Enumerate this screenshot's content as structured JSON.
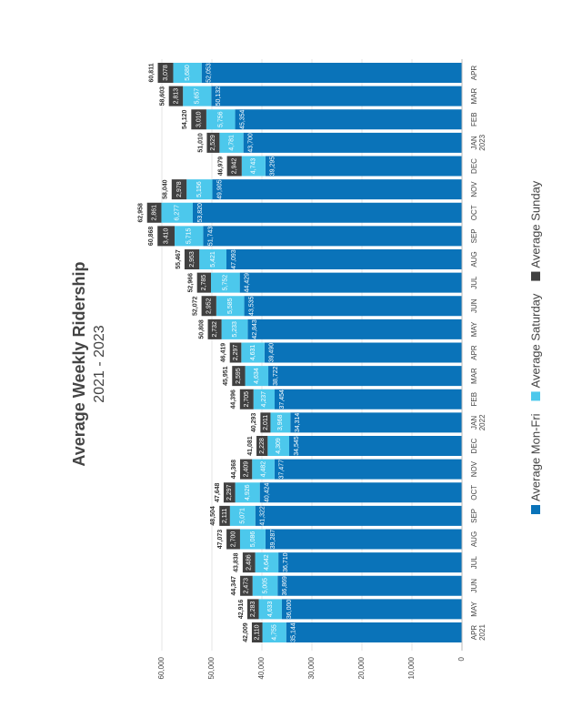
{
  "chart_data": {
    "type": "stacked_bar",
    "title": "Average Weekly Ridership",
    "subtitle": "2021 - 2023",
    "categories": [
      "APR 2021",
      "MAY",
      "JUN",
      "JUL",
      "AUG",
      "SEP",
      "OCT",
      "NOV",
      "DEC",
      "JAN 2022",
      "FEB",
      "MAR",
      "APR",
      "MAY",
      "JUN",
      "JUL",
      "AUG",
      "SEP",
      "OCT",
      "NOV",
      "DEC",
      "JAN 2023",
      "FEB",
      "MAR",
      "APR"
    ],
    "series": [
      {
        "name": "Average Mon-Fri",
        "color": "#0a73b9",
        "values": [
          35144,
          36000,
          36869,
          36710,
          39287,
          41322,
          40424,
          37477,
          34545,
          34314,
          37454,
          38722,
          39490,
          42843,
          43535,
          44429,
          47093,
          51743,
          53820,
          49905,
          39295,
          43700,
          45354,
          50132,
          52053
        ],
        "value_labels": [
          "35,144",
          "36,000",
          "36,869",
          "36,710",
          "39,287",
          "41,322",
          "40,424",
          "37,477",
          "34,545",
          "34,314",
          "37,454",
          "38,722",
          "39,490",
          "42,843",
          "43,535",
          "44,429",
          "47,093",
          "51,743",
          "53,820",
          "49,905",
          "39,295",
          "43,700",
          "45,354",
          "50,132",
          "52,053"
        ]
      },
      {
        "name": "Average Saturday",
        "color": "#4cc8ec",
        "values": [
          4755,
          4633,
          5005,
          4642,
          5086,
          5071,
          4926,
          4482,
          4309,
          3968,
          4237,
          4634,
          4631,
          5233,
          5585,
          5752,
          5421,
          5715,
          6277,
          5156,
          4743,
          4781,
          5756,
          5657,
          5680
        ],
        "value_labels": [
          "4,755",
          "4,633",
          "5,005",
          "4,642",
          "5,086",
          "5,071",
          "4,926",
          "4,482",
          "4,309",
          "3,968",
          "4,237",
          "4,634",
          "4,631",
          "5,233",
          "5,585",
          "5,752",
          "5,421",
          "5,715",
          "6,277",
          "5,156",
          "4,743",
          "4,781",
          "5,756",
          "5,657",
          "5,680"
        ]
      },
      {
        "name": "Average Sunday",
        "color": "#404040",
        "values": [
          2110,
          2283,
          2473,
          2486,
          2700,
          2111,
          2297,
          2409,
          2228,
          2011,
          2705,
          2595,
          2297,
          2732,
          2952,
          2785,
          2953,
          3410,
          2861,
          2978,
          2942,
          2529,
          3010,
          2813,
          3078
        ],
        "value_labels": [
          "2,110",
          "2,283",
          "2,473",
          "2,486",
          "2,700",
          "2,111",
          "2,297",
          "2,409",
          "2,228",
          "2,011",
          "2,705",
          "2,595",
          "2,297",
          "2,732",
          "2,952",
          "2,785",
          "2,953",
          "3,410",
          "2,861",
          "2,978",
          "2,942",
          "2,529",
          "3,010",
          "2,813",
          "3,078"
        ]
      }
    ],
    "totals": [
      42009,
      42916,
      44347,
      43838,
      47073,
      48504,
      47648,
      44368,
      41081,
      40293,
      44396,
      45951,
      46419,
      50808,
      52072,
      52966,
      55467,
      60868,
      62958,
      58040,
      46979,
      51010,
      54120,
      58603,
      60811
    ],
    "total_labels": [
      "42,009",
      "42,916",
      "44,347",
      "43,838",
      "47,073",
      "48,504",
      "47,648",
      "44,368",
      "41,081",
      "40,293",
      "44,396",
      "45,951",
      "46,419",
      "50,808",
      "52,072",
      "52,966",
      "55,467",
      "60,868",
      "62,958",
      "58,040",
      "46,979",
      "51,010",
      "54,120",
      "58,603",
      "60,811"
    ],
    "ylim": [
      0,
      60000
    ],
    "yticks": [
      0,
      {
        "value": 10000,
        "label": "10,000"
      },
      {
        "value": 20000,
        "label": "20,000"
      },
      {
        "value": 30000,
        "label": "30,000"
      },
      {
        "value": 40000,
        "label": "40,000"
      },
      {
        "value": 50000,
        "label": "50,000"
      },
      {
        "value": 60000,
        "label": "60,000"
      }
    ],
    "grid": true,
    "legend": "bottom"
  }
}
